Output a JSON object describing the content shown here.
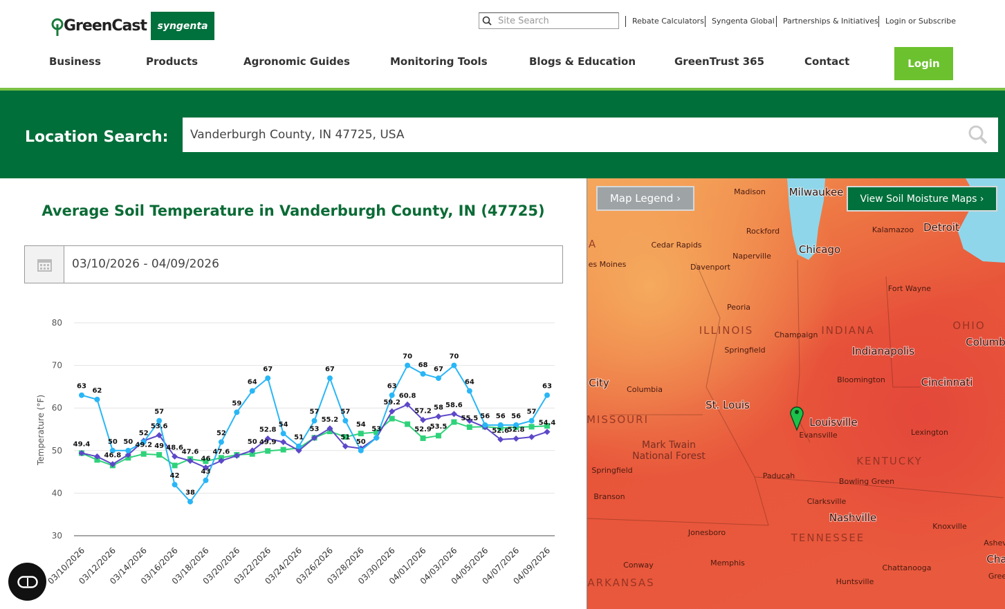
{
  "header": {
    "logo": "GreenCast",
    "brand": "syngenta",
    "search_placeholder": "Site Search",
    "links": [
      "Rebate Calculators",
      "Syngenta Global",
      "Partnerships & Initiatives",
      "Login or Subscribe"
    ]
  },
  "nav": {
    "items": [
      "Business",
      "Products",
      "Agronomic Guides",
      "Monitoring Tools",
      "Blogs & Education",
      "GreenTrust 365",
      "Contact"
    ],
    "login": "Login"
  },
  "location_search": {
    "label": "Location Search:",
    "value": "Vanderburgh County, IN 47725, USA"
  },
  "chart_data": {
    "type": "line",
    "title": "Average Soil Temperature in Vanderburgh County, IN (47725)",
    "date_range": "03/10/2026 - 04/09/2026",
    "y_label": "Temperature (°F)",
    "categories": [
      "03/10/2026",
      null,
      "03/12/2026",
      null,
      "03/14/2026",
      null,
      "03/16/2026",
      null,
      "03/18/2026",
      null,
      "03/20/2026",
      null,
      "03/22/2026",
      null,
      "03/24/2026",
      null,
      "03/26/2026",
      null,
      "03/28/2026",
      null,
      "03/30/2026",
      null,
      "04/01/2026",
      null,
      "04/03/2026",
      null,
      "04/05/2026",
      null,
      "04/07/2026",
      null,
      "04/09/2026"
    ],
    "series": [
      {
        "color": "#29b6f6",
        "marker": "circle",
        "values": [
          63,
          62,
          50,
          50,
          52,
          57,
          42,
          38,
          43,
          52,
          59,
          64,
          67,
          54,
          51,
          57,
          67,
          57,
          50,
          53,
          63,
          70,
          68,
          67,
          70,
          64,
          56,
          56,
          56,
          57,
          63
        ]
      },
      {
        "color": "#5c48c8",
        "marker": "diamond",
        "values": [
          49.4,
          48.6,
          46.8,
          49,
          52.3,
          53.6,
          48.6,
          47.6,
          46,
          47.6,
          48.8,
          50,
          52.8,
          52,
          50,
          53,
          55.2,
          51,
          50.5,
          53,
          59.2,
          60.8,
          57.2,
          58,
          58.6,
          57,
          55.5,
          52.6,
          52.8,
          53.2,
          54.4
        ],
        "value_labels": [
          "49.4",
          null,
          "46.8",
          null,
          null,
          "53.6",
          "48.6",
          "47.6",
          "46",
          "47.6",
          null,
          "50",
          "52.8",
          null,
          null,
          null,
          "55.2",
          "51",
          null,
          null,
          "59.2",
          "60.8",
          "57.2",
          "58",
          "58.6",
          null,
          null,
          "52.6",
          "52.8",
          null,
          "54.4"
        ]
      },
      {
        "color": "#2fd27a",
        "marker": "square",
        "values": [
          49.4,
          47.8,
          46.5,
          48.3,
          49.2,
          49,
          46.5,
          48,
          47.5,
          48.3,
          49,
          49.2,
          49.9,
          50.2,
          50.6,
          53,
          54.5,
          53.2,
          54,
          54.3,
          57.5,
          56.2,
          52.9,
          53.5,
          56.7,
          55.5,
          55.6,
          55.3,
          55.5,
          55.6,
          55.8
        ],
        "value_labels": [
          null,
          null,
          null,
          null,
          "49.2",
          "49",
          null,
          null,
          null,
          null,
          null,
          null,
          "49.9",
          null,
          null,
          "53",
          null,
          null,
          "54",
          null,
          null,
          null,
          "52.9",
          "53.5",
          null,
          "55.5",
          null,
          null,
          null,
          null,
          null
        ]
      }
    ],
    "ylim": [
      30,
      80
    ],
    "yticks": [
      30,
      40,
      50,
      60,
      70,
      80
    ],
    "grid": true
  },
  "map": {
    "buttons": [
      "Map Legend ›",
      "View Soil Moisture Maps ›"
    ],
    "labels": [
      "Madison",
      "Milwaukee",
      "Rockford",
      "Kalamazoo",
      "Detroit",
      "Cedar Rapids",
      "Naperville",
      "Chicago",
      "A",
      "es Moines",
      "Davenport",
      "Fort Wayne",
      "Peoria",
      "ILLINOIS",
      "INDIANA",
      "OHIO",
      "Champaign",
      "Indianapolis",
      "Columb",
      "Springfield",
      "City",
      "Bloomington",
      "Cincinnati",
      "Columbia",
      "St. Louis",
      "MISSOURI",
      "Louisville",
      "Evansville",
      "Lexington",
      "Mark Twain",
      "National Forest",
      "KENTUCKY",
      "Springfield",
      "Paducah",
      "Bowling Green",
      "Branson",
      "Clarksville",
      "Nashville",
      "Knoxville",
      "Jonesboro",
      "TENNESSEE",
      "Ashev",
      "Cha",
      "Conway",
      "Memphis",
      "Chattanooga",
      "Gree",
      "ARKANSAS",
      "Huntsville"
    ]
  }
}
